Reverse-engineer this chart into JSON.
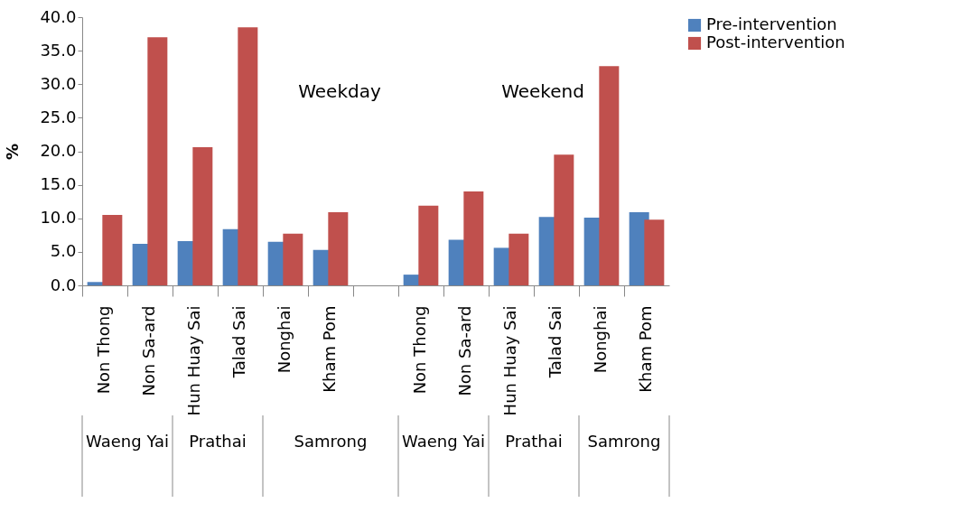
{
  "chart_data": {
    "type": "bar",
    "ylabel": "%",
    "categories": [
      "Non Thong",
      "Non Sa-ard",
      "Hun Huay Sai",
      "Talad Sai",
      "Nonghai",
      "Kham Pom",
      null,
      "Non Thong",
      "Non Sa-ard",
      "Hun Huay Sai",
      "Talad Sai",
      "Nonghai",
      "Kham Pom"
    ],
    "series": [
      {
        "name": "Pre-intervention",
        "color": "#4f81bd",
        "values": [
          0.5,
          6.2,
          6.6,
          8.4,
          6.5,
          5.3,
          null,
          1.6,
          6.8,
          5.6,
          10.2,
          10.1,
          10.9
        ]
      },
      {
        "name": "Post-intervention",
        "color": "#c0504d",
        "values": [
          10.5,
          37.0,
          20.6,
          38.5,
          7.7,
          10.9,
          null,
          11.9,
          14.0,
          7.7,
          19.5,
          32.7,
          9.8
        ]
      }
    ],
    "ylim": [
      0,
      40
    ],
    "yticks": [
      {
        "value": 0,
        "label": "0.0"
      },
      {
        "value": 5,
        "label": "5.0"
      },
      {
        "value": 10,
        "label": "10.0"
      },
      {
        "value": 15,
        "label": "15.0"
      },
      {
        "value": 20,
        "label": "20.0"
      },
      {
        "value": 25,
        "label": "25.0"
      },
      {
        "value": 30,
        "label": "30.0"
      },
      {
        "value": 35,
        "label": "35.0"
      },
      {
        "value": 40,
        "label": "40.0"
      }
    ],
    "annotations": [
      "Weekday",
      "Weekend",
      "Waeng Yai",
      "Prathai",
      "Samrong",
      "Waeng Yai",
      "Prathai",
      "Samrong"
    ],
    "legend": "right",
    "grid": false
  }
}
